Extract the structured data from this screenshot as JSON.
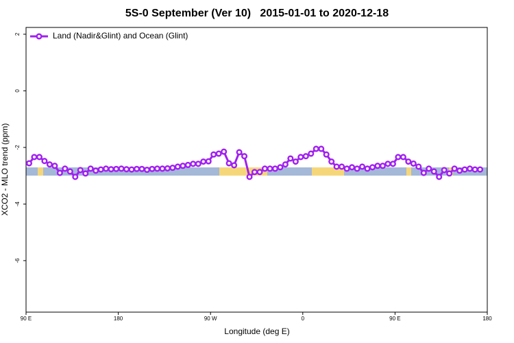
{
  "chart_data": {
    "type": "line",
    "title": "5S-0 September (Ver 10)   2015-01-01 to 2020-12-18",
    "x_label": "Longitude (deg E)",
    "y_label": "XCO2 - MLO trend (ppm)",
    "x": [
      93,
      98,
      103,
      108,
      113,
      118,
      123,
      128,
      133,
      138,
      143,
      148,
      153,
      158,
      163,
      168,
      173,
      178,
      183,
      188,
      193,
      198,
      203,
      208,
      213,
      218,
      223,
      228,
      233,
      238,
      243,
      248,
      253,
      258,
      263,
      268,
      273,
      278,
      283,
      288,
      293,
      298,
      303,
      308,
      313,
      318,
      323,
      328,
      333,
      338,
      343,
      348,
      353,
      358,
      363,
      368,
      373,
      378,
      383,
      388,
      393,
      398,
      403,
      408,
      413,
      418,
      423,
      428,
      433,
      438,
      443,
      448,
      453,
      458,
      463,
      468,
      473,
      478,
      483,
      488,
      493,
      498,
      503,
      508,
      513,
      518,
      523,
      528,
      533
    ],
    "series": [
      {
        "name": "Land (Nadir&Glint) and Ocean (Glint)",
        "color": "#a020f0",
        "values": [
          -2.56,
          -2.34,
          -2.34,
          -2.48,
          -2.6,
          -2.65,
          -2.9,
          -2.75,
          -2.85,
          -3.04,
          -2.8,
          -2.92,
          -2.75,
          -2.82,
          -2.78,
          -2.75,
          -2.77,
          -2.76,
          -2.75,
          -2.77,
          -2.78,
          -2.76,
          -2.76,
          -2.79,
          -2.76,
          -2.75,
          -2.75,
          -2.74,
          -2.72,
          -2.68,
          -2.65,
          -2.62,
          -2.58,
          -2.58,
          -2.5,
          -2.49,
          -2.25,
          -2.22,
          -2.15,
          -2.56,
          -2.63,
          -2.17,
          -2.31,
          -3.04,
          -2.87,
          -2.87,
          -2.75,
          -2.75,
          -2.75,
          -2.7,
          -2.6,
          -2.39,
          -2.5,
          -2.34,
          -2.31,
          -2.22,
          -2.05,
          -2.05,
          -2.25,
          -2.5,
          -2.68,
          -2.68,
          -2.75,
          -2.7,
          -2.75,
          -2.68,
          -2.75,
          -2.7,
          -2.65,
          -2.65,
          -2.58,
          -2.58,
          -2.34,
          -2.34,
          -2.5,
          -2.57,
          -2.68,
          -2.9,
          -2.75,
          -2.85,
          -3.04,
          -2.8,
          -2.92,
          -2.75,
          -2.82,
          -2.78,
          -2.75,
          -2.78,
          -2.78
        ]
      }
    ],
    "xlim": [
      90,
      540
    ],
    "xticks": [
      {
        "value": 90,
        "label": "90 E"
      },
      180,
      {
        "value": 270,
        "label": "90 W"
      },
      {
        "value": 360,
        "label": "0"
      },
      {
        "value": 450,
        "label": "90 E"
      },
      {
        "value": 540,
        "label": "180"
      }
    ],
    "ylim": [
      -7.82,
      2.24
    ],
    "yticks": [
      2,
      0,
      -2,
      -4,
      -6
    ],
    "legend": "top-left"
  }
}
